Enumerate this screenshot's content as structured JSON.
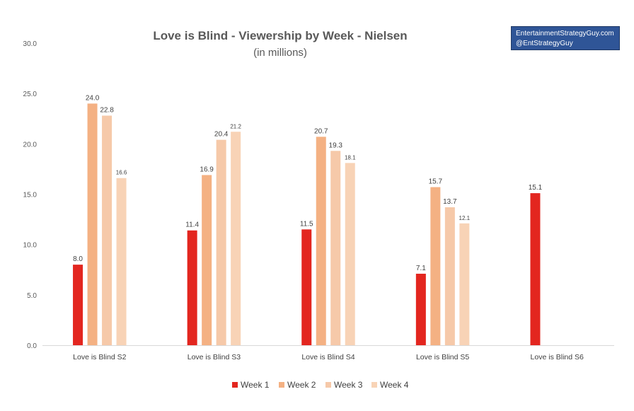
{
  "chart_data": {
    "type": "bar",
    "title": "Love is Blind - Viewership by Week - Nielsen",
    "subtitle": "(in millions)",
    "xlabel": "",
    "ylabel": "",
    "ylim": [
      0,
      30
    ],
    "yticks": [
      "0.0",
      "5.0",
      "10.0",
      "15.0",
      "20.0",
      "25.0",
      "30.0"
    ],
    "grid": false,
    "legend_position": "bottom",
    "categories": [
      "Love is Blind S2",
      "Love is Blind S3",
      "Love is Blind S4",
      "Love is Blind S5",
      "Love is Blind S6"
    ],
    "series": [
      {
        "name": "Week 1",
        "color": "#e3261f",
        "values": [
          8.0,
          11.4,
          11.5,
          7.1,
          15.1
        ],
        "labels": [
          "8.0",
          "11.4",
          "11.5",
          "7.1",
          "15.1"
        ]
      },
      {
        "name": "Week 2",
        "color": "#f4b183",
        "values": [
          24.0,
          16.9,
          20.7,
          15.7,
          null
        ],
        "labels": [
          "24.0",
          "16.9",
          "20.7",
          "15.7",
          null
        ]
      },
      {
        "name": "Week 3",
        "color": "#f6c9a9",
        "values": [
          22.8,
          20.4,
          19.3,
          13.7,
          null
        ],
        "labels": [
          "22.8",
          "20.4",
          "19.3",
          "13.7",
          null
        ]
      },
      {
        "name": "Week 4",
        "color": "#f8d3b6",
        "values": [
          16.6,
          21.2,
          18.1,
          12.1,
          null
        ],
        "labels": [
          "16.6",
          "21.2",
          "18.1",
          "12.1",
          null
        ]
      }
    ]
  },
  "badge": {
    "line1": "EntertainmentStrategyGuy.com",
    "line2": "@EntStrategyGuy"
  }
}
